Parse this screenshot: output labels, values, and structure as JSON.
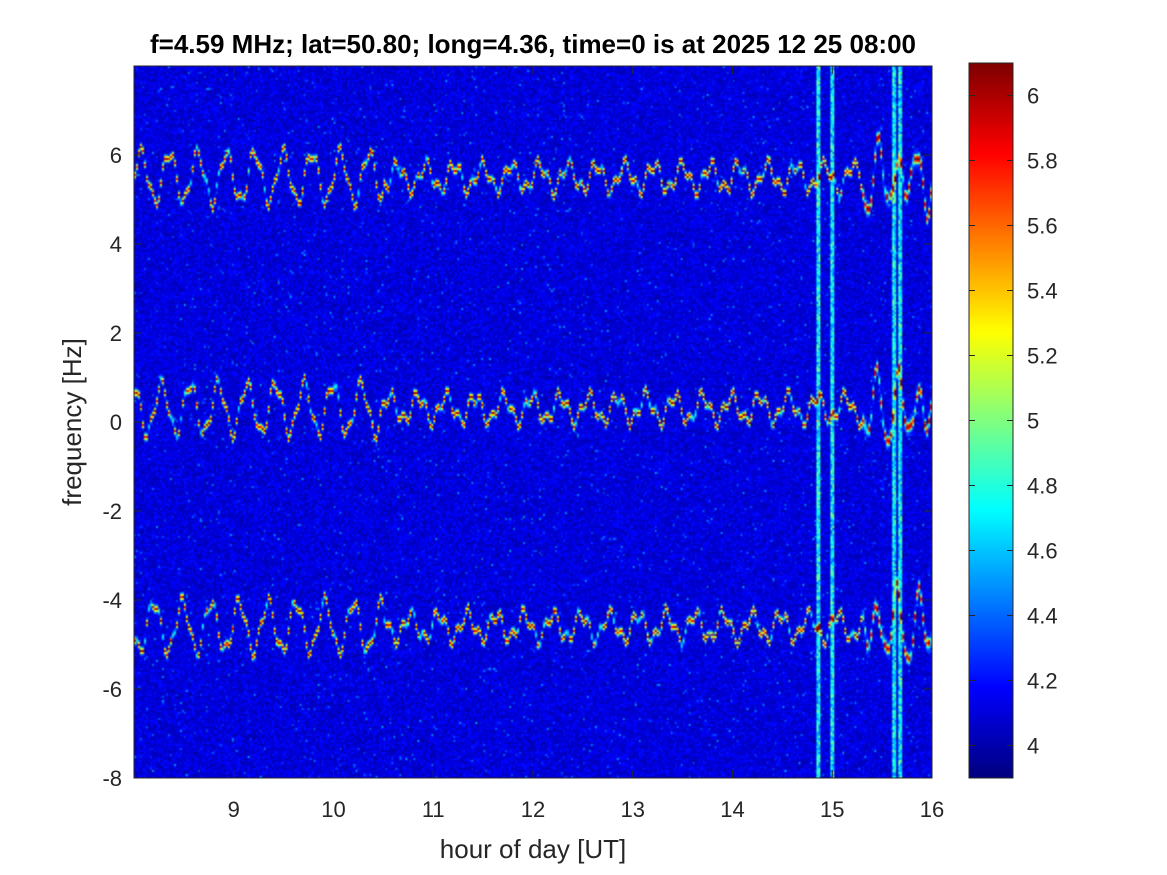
{
  "chart_data": {
    "type": "heatmap",
    "title": "f=4.59 MHz;  lat=50.80; long=4.36, time=0 is at 2025 12 25 08:00",
    "xlabel": "hour of day [UT]",
    "ylabel": "frequency [Hz]",
    "xlim": [
      8,
      16
    ],
    "ylim": [
      -8,
      8
    ],
    "x_ticks": [
      9,
      10,
      11,
      12,
      13,
      14,
      15,
      16
    ],
    "x_tick_labels": [
      "9",
      "10",
      "11",
      "12",
      "13",
      "14",
      "15",
      "16"
    ],
    "y_ticks": [
      -8,
      -6,
      -4,
      -2,
      0,
      2,
      4,
      6
    ],
    "y_tick_labels": [
      "-8",
      "-6",
      "-4",
      "-2",
      "0",
      "2",
      "4",
      "6"
    ],
    "colorbar": {
      "colormap": "jet",
      "clim": [
        3.9,
        6.1
      ],
      "ticks": [
        4,
        4.2,
        4.4,
        4.6,
        4.8,
        5,
        5.2,
        5.4,
        5.6,
        5.8,
        6
      ],
      "tick_labels": [
        "4",
        "4.2",
        "4.4",
        "4.6",
        "4.8",
        "5",
        "5.2",
        "5.4",
        "5.6",
        "5.8",
        "6"
      ]
    },
    "background_level": 4.1,
    "traces": [
      {
        "center_hz": 5.5,
        "start_hour": 8.0,
        "end_hour": 16.0
      },
      {
        "center_hz": 0.3,
        "start_hour": 8.0,
        "end_hour": 16.0
      },
      {
        "center_hz": -4.6,
        "start_hour": 8.0,
        "end_hour": 16.0
      }
    ],
    "vertical_streaks_hours": [
      14.85,
      14.98,
      15.62,
      15.67
    ],
    "grid": false
  }
}
